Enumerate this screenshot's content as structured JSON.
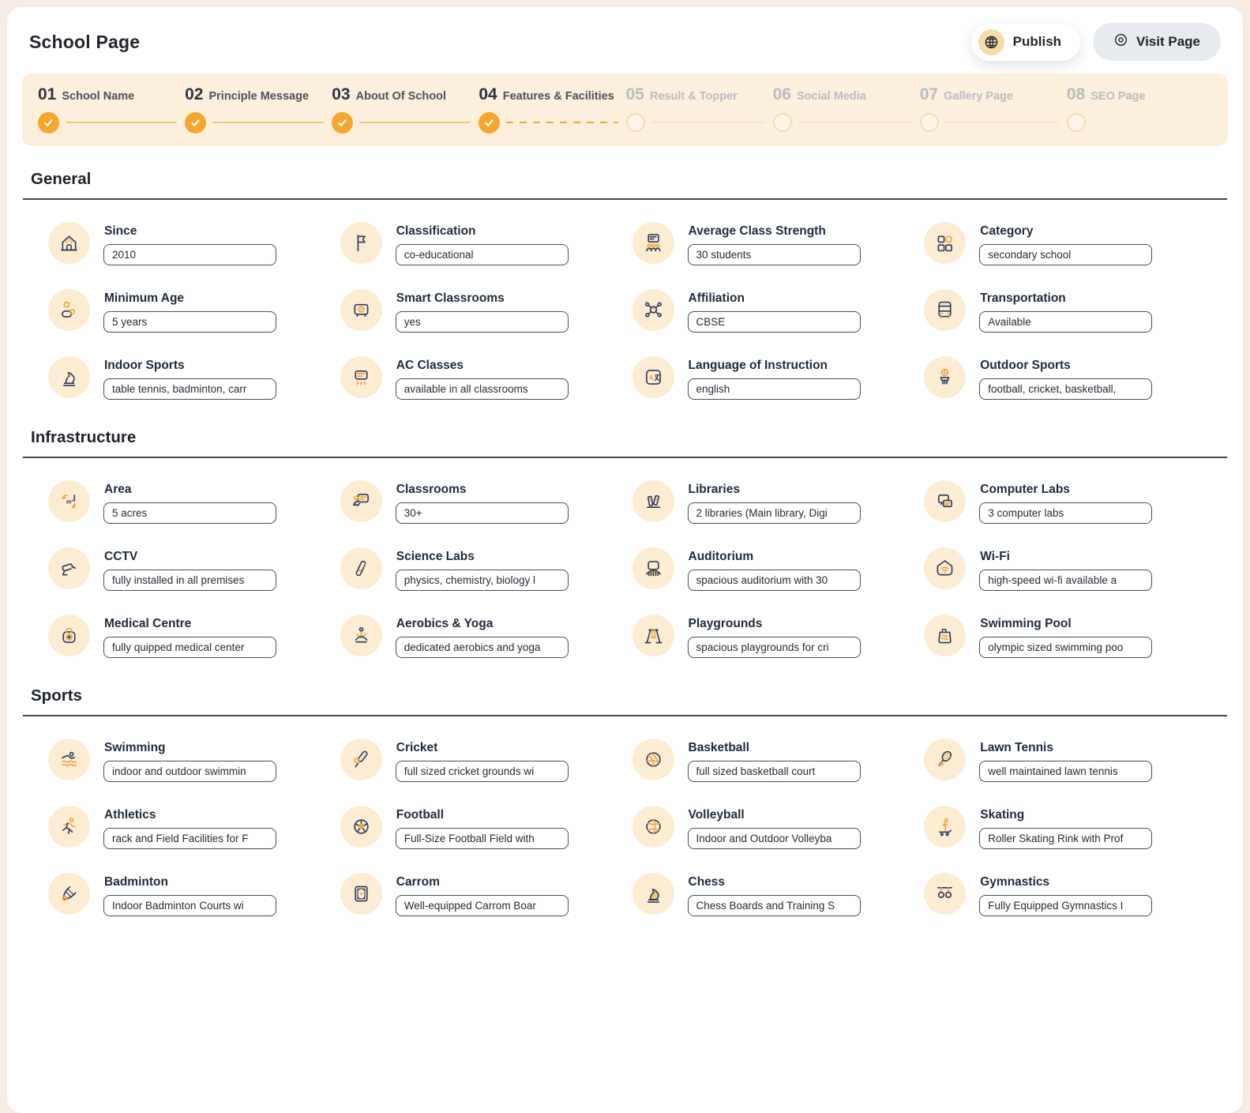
{
  "page": {
    "title": "School Page"
  },
  "actions": {
    "publish": "Publish",
    "visit": "Visit Page"
  },
  "colors": {
    "accent": "#f2a33c",
    "navy": "#2b3a5c",
    "stepper_bg": "#fcefdc",
    "icon_bg": "#fcecd2"
  },
  "stepper": [
    {
      "num": "01",
      "label": "School Name",
      "state": "completed"
    },
    {
      "num": "02",
      "label": "Principle Message",
      "state": "completed"
    },
    {
      "num": "03",
      "label": "About Of School",
      "state": "completed"
    },
    {
      "num": "04",
      "label": "Features & Facilities",
      "state": "completed"
    },
    {
      "num": "05",
      "label": "Result & Topper",
      "state": "upcoming"
    },
    {
      "num": "06",
      "label": "Social Media",
      "state": "upcoming"
    },
    {
      "num": "07",
      "label": "Gallery Page",
      "state": "upcoming"
    },
    {
      "num": "08",
      "label": "SEO Page",
      "state": "upcoming"
    }
  ],
  "sections": [
    {
      "title": "General",
      "fields": [
        {
          "label": "Since",
          "value": "2010",
          "icon": "school-building-icon"
        },
        {
          "label": "Classification",
          "value": "co-educational",
          "icon": "flag-icon"
        },
        {
          "label": "Average Class Strength",
          "value": "30 students",
          "icon": "class-strength-icon"
        },
        {
          "label": "Category",
          "value": "secondary school",
          "icon": "category-grid-icon"
        },
        {
          "label": "Minimum Age",
          "value": "5 years",
          "icon": "person-age-icon"
        },
        {
          "label": "Smart Classrooms",
          "value": "yes",
          "icon": "projector-icon"
        },
        {
          "label": "Affiliation",
          "value": "CBSE",
          "icon": "network-icon"
        },
        {
          "label": "Transportation",
          "value": "Available",
          "icon": "bus-icon"
        },
        {
          "label": "Indoor Sports",
          "value": "table tennis, badminton, carr",
          "icon": "chess-knight-icon"
        },
        {
          "label": "AC Classes",
          "value": "available in all classrooms",
          "icon": "ac-unit-icon"
        },
        {
          "label": "Language of Instruction",
          "value": "english",
          "icon": "translate-icon"
        },
        {
          "label": "Outdoor Sports",
          "value": "football, cricket, basketball,",
          "icon": "basketball-hoop-icon"
        }
      ]
    },
    {
      "title": "Infrastructure",
      "fields": [
        {
          "label": "Area",
          "value": "5 acres",
          "icon": "measure-icon"
        },
        {
          "label": "Classrooms",
          "value": "30+",
          "icon": "classroom-board-icon"
        },
        {
          "label": "Libraries",
          "value": "2 libraries (Main library, Digi",
          "icon": "library-books-icon"
        },
        {
          "label": "Computer Labs",
          "value": "3 computer labs",
          "icon": "computer-labs-icon"
        },
        {
          "label": "CCTV",
          "value": "fully installed in all premises",
          "icon": "cctv-icon"
        },
        {
          "label": "Science Labs",
          "value": "physics, chemistry, biology l",
          "icon": "test-tube-icon"
        },
        {
          "label": "Auditorium",
          "value": "spacious auditorium with 30",
          "icon": "auditorium-icon"
        },
        {
          "label": "Wi-Fi",
          "value": "high-speed wi-fi available a",
          "icon": "wifi-shield-icon"
        },
        {
          "label": "Medical Centre",
          "value": "fully quipped medical center",
          "icon": "medical-kit-icon"
        },
        {
          "label": "Aerobics & Yoga",
          "value": "dedicated aerobics and yoga",
          "icon": "yoga-icon"
        },
        {
          "label": "Playgrounds",
          "value": "spacious playgrounds for cri",
          "icon": "playground-swing-icon"
        },
        {
          "label": "Swimming Pool",
          "value": "olympic sized swimming poo",
          "icon": "swimming-pool-icon"
        }
      ]
    },
    {
      "title": "Sports",
      "fields": [
        {
          "label": "Swimming",
          "value": "indoor and outdoor swimmin",
          "icon": "swimmer-icon"
        },
        {
          "label": "Cricket",
          "value": "full sized cricket grounds wi",
          "icon": "cricket-bat-icon"
        },
        {
          "label": "Basketball",
          "value": "full sized basketball court",
          "icon": "basketball-icon"
        },
        {
          "label": "Lawn Tennis",
          "value": "well maintained lawn tennis",
          "icon": "tennis-racket-icon"
        },
        {
          "label": "Athletics",
          "value": "rack and Field Facilities for F",
          "icon": "runner-icon"
        },
        {
          "label": "Football",
          "value": "Full-Size Football Field with",
          "icon": "football-icon"
        },
        {
          "label": "Volleyball",
          "value": "Indoor and Outdoor Volleyba",
          "icon": "volleyball-icon"
        },
        {
          "label": "Skating",
          "value": "Roller Skating Rink with Prof",
          "icon": "skating-icon"
        },
        {
          "label": "Badminton",
          "value": "Indoor Badminton Courts wi",
          "icon": "shuttlecock-icon"
        },
        {
          "label": "Carrom",
          "value": "Well-equipped Carrom Boar",
          "icon": "carrom-board-icon"
        },
        {
          "label": "Chess",
          "value": "Chess Boards and Training S",
          "icon": "chess-piece-icon"
        },
        {
          "label": "Gymnastics",
          "value": "Fully Equipped Gymnastics I",
          "icon": "gymnastics-rings-icon"
        }
      ]
    }
  ]
}
